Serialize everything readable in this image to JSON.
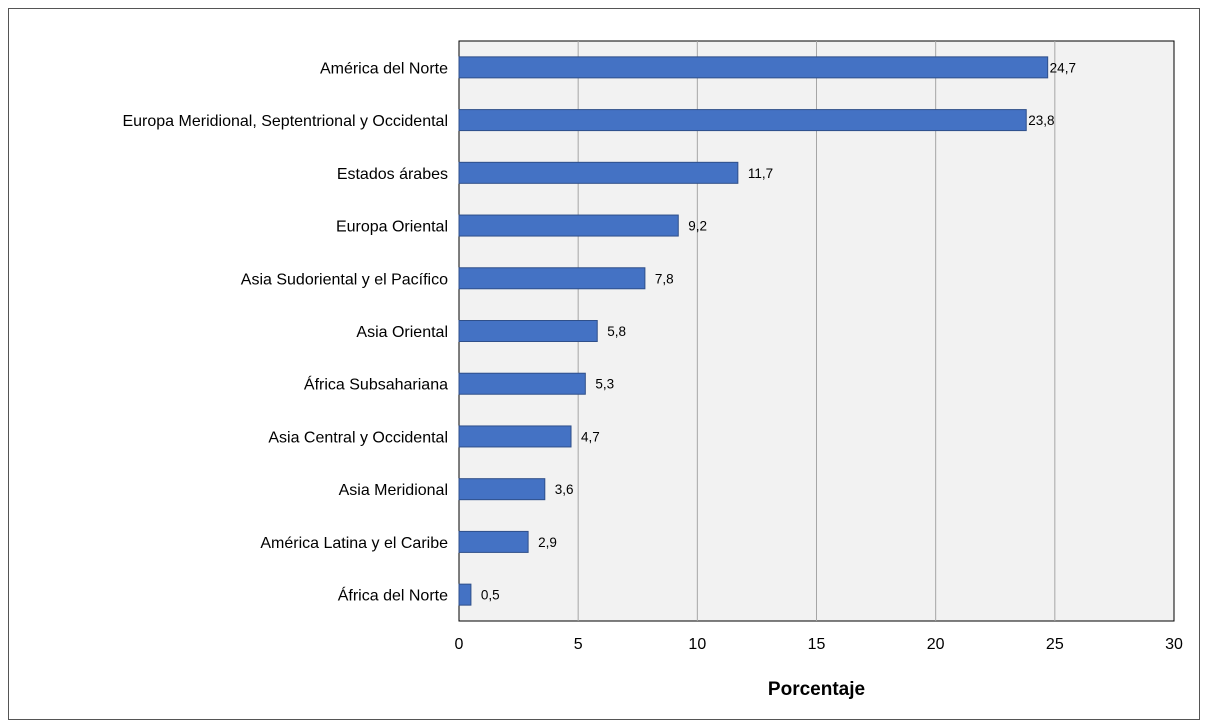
{
  "chart_data": {
    "type": "bar",
    "orientation": "horizontal",
    "categories": [
      "América del Norte",
      "Europa Meridional, Septentrional y Occidental",
      "Estados árabes",
      "Europa Oriental",
      "Asia Sudoriental y el Pacífico",
      "Asia Oriental",
      "África Subsahariana",
      "Asia Central y Occidental",
      "Asia Meridional",
      "América Latina y el Caribe",
      "África del Norte"
    ],
    "values": [
      24.7,
      23.8,
      11.7,
      9.2,
      7.8,
      5.8,
      5.3,
      4.7,
      3.6,
      2.9,
      0.5
    ],
    "value_labels": [
      "24,7",
      "23,8",
      "11,7",
      "9,2",
      "7,8",
      "5,8",
      "5,3",
      "4,7",
      "3,6",
      "2,9",
      "0,5"
    ],
    "title": "",
    "xlabel": "Porcentaje",
    "ylabel": "",
    "xlim": [
      0,
      30
    ],
    "xticks": [
      0,
      5,
      10,
      15,
      20,
      25,
      30
    ],
    "xtick_labels": [
      "0",
      "5",
      "10",
      "15",
      "20",
      "25",
      "30"
    ],
    "grid": "vertical",
    "legend": "none",
    "colors": {
      "bar_fill": "#4472c4",
      "bar_stroke": "#2f4f8a",
      "plot_background": "#f2f2f2",
      "gridline": "#a6a6a6",
      "axis": "#000000"
    }
  }
}
